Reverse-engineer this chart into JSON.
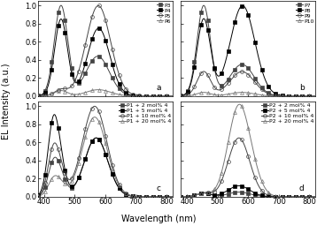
{
  "xlabel": "Wavelength (nm)",
  "ylabel": "EL Intensity (a.u.)",
  "xlim": [
    380,
    820
  ],
  "ylim": [
    0,
    1.05
  ],
  "panel_labels": [
    "a",
    "b",
    "c",
    "d"
  ],
  "legend_a": [
    "P3",
    "P4",
    "P5",
    "P6"
  ],
  "legend_b": [
    "P7",
    "P8",
    "P9",
    "P10"
  ],
  "legend_c": [
    "P1 + 2 mol% 4",
    "P1 + 5 mol% 4",
    "P1 + 10 mol% 4",
    "P1 + 20 mol% 4"
  ],
  "legend_d": [
    "P2 + 2 mol% 4",
    "P2 + 5 mol% 4",
    "P2 + 10 mol% 4",
    "P2 + 20 mol% 4"
  ],
  "tick_fontsize": 6,
  "label_fontsize": 7,
  "legend_fontsize": 4.5,
  "yticks": [
    0.0,
    0.2,
    0.4,
    0.6,
    0.8,
    1.0
  ],
  "xticks": [
    400,
    500,
    600,
    700,
    800
  ]
}
